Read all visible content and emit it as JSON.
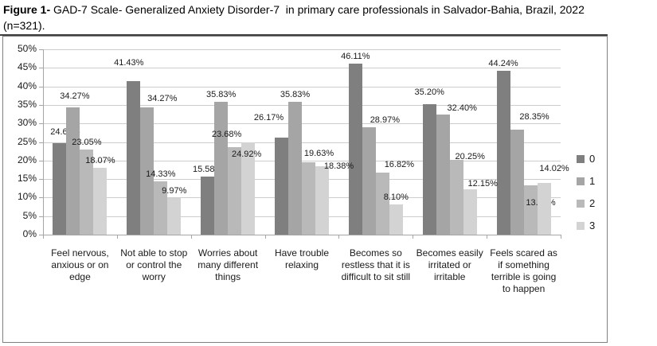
{
  "figure": {
    "title_prefix": "Figure 1-",
    "title_body": " GAD-7 Scale- Generalized Anxiety Disorder-7  in primary care professionals in Salvador-Bahia, Brazil, 2022",
    "title_tail": "(n=321)."
  },
  "chart_data": {
    "type": "bar",
    "title": "Figure 1- GAD-7 Scale- Generalized Anxiety Disorder-7 in primary care professionals in Salvador-Bahia, Brazil, 2022 (n=321).",
    "categories": [
      "Feel nervous, anxious or on edge",
      "Not able to stop or control the worry",
      "Worries about many different things",
      "Have trouble relaxing",
      "Becomes so restless that it is difficult to sit still",
      "Becomes easily irritated or irritable",
      "Feels scared as if something terrible is going to happen"
    ],
    "series": [
      {
        "name": "0",
        "color": "#7F7F7F",
        "values": [
          24.61,
          41.43,
          15.58,
          26.17,
          46.11,
          35.2,
          44.24
        ]
      },
      {
        "name": "1",
        "color": "#A5A5A5",
        "values": [
          34.27,
          34.27,
          35.83,
          35.83,
          28.97,
          32.4,
          28.35
        ]
      },
      {
        "name": "2",
        "color": "#B9B9B9",
        "values": [
          23.05,
          14.33,
          23.68,
          19.63,
          16.82,
          20.25,
          13.4
        ]
      },
      {
        "name": "3",
        "color": "#D3D3D3",
        "values": [
          18.07,
          9.97,
          24.92,
          18.38,
          8.1,
          12.15,
          14.02
        ]
      }
    ],
    "value_label_suffix": "%",
    "value_label_decimals": 2,
    "xlabel": "",
    "ylabel": "",
    "ylim": [
      0,
      50
    ],
    "ytick_step": 5,
    "ytick_labels": [
      "0%",
      "5%",
      "10%",
      "15%",
      "20%",
      "25%",
      "30%",
      "35%",
      "40%",
      "45%",
      "50%"
    ],
    "grid": true,
    "legend_position": "right",
    "legend_labels": [
      "0",
      "1",
      "2",
      "3"
    ],
    "colors": {
      "gridline": "#CDCDCD",
      "axis": "#A6A6A6",
      "text": "#1A1A1A",
      "frame_border": "#808080",
      "title_rule": "#3F3F3F"
    }
  }
}
